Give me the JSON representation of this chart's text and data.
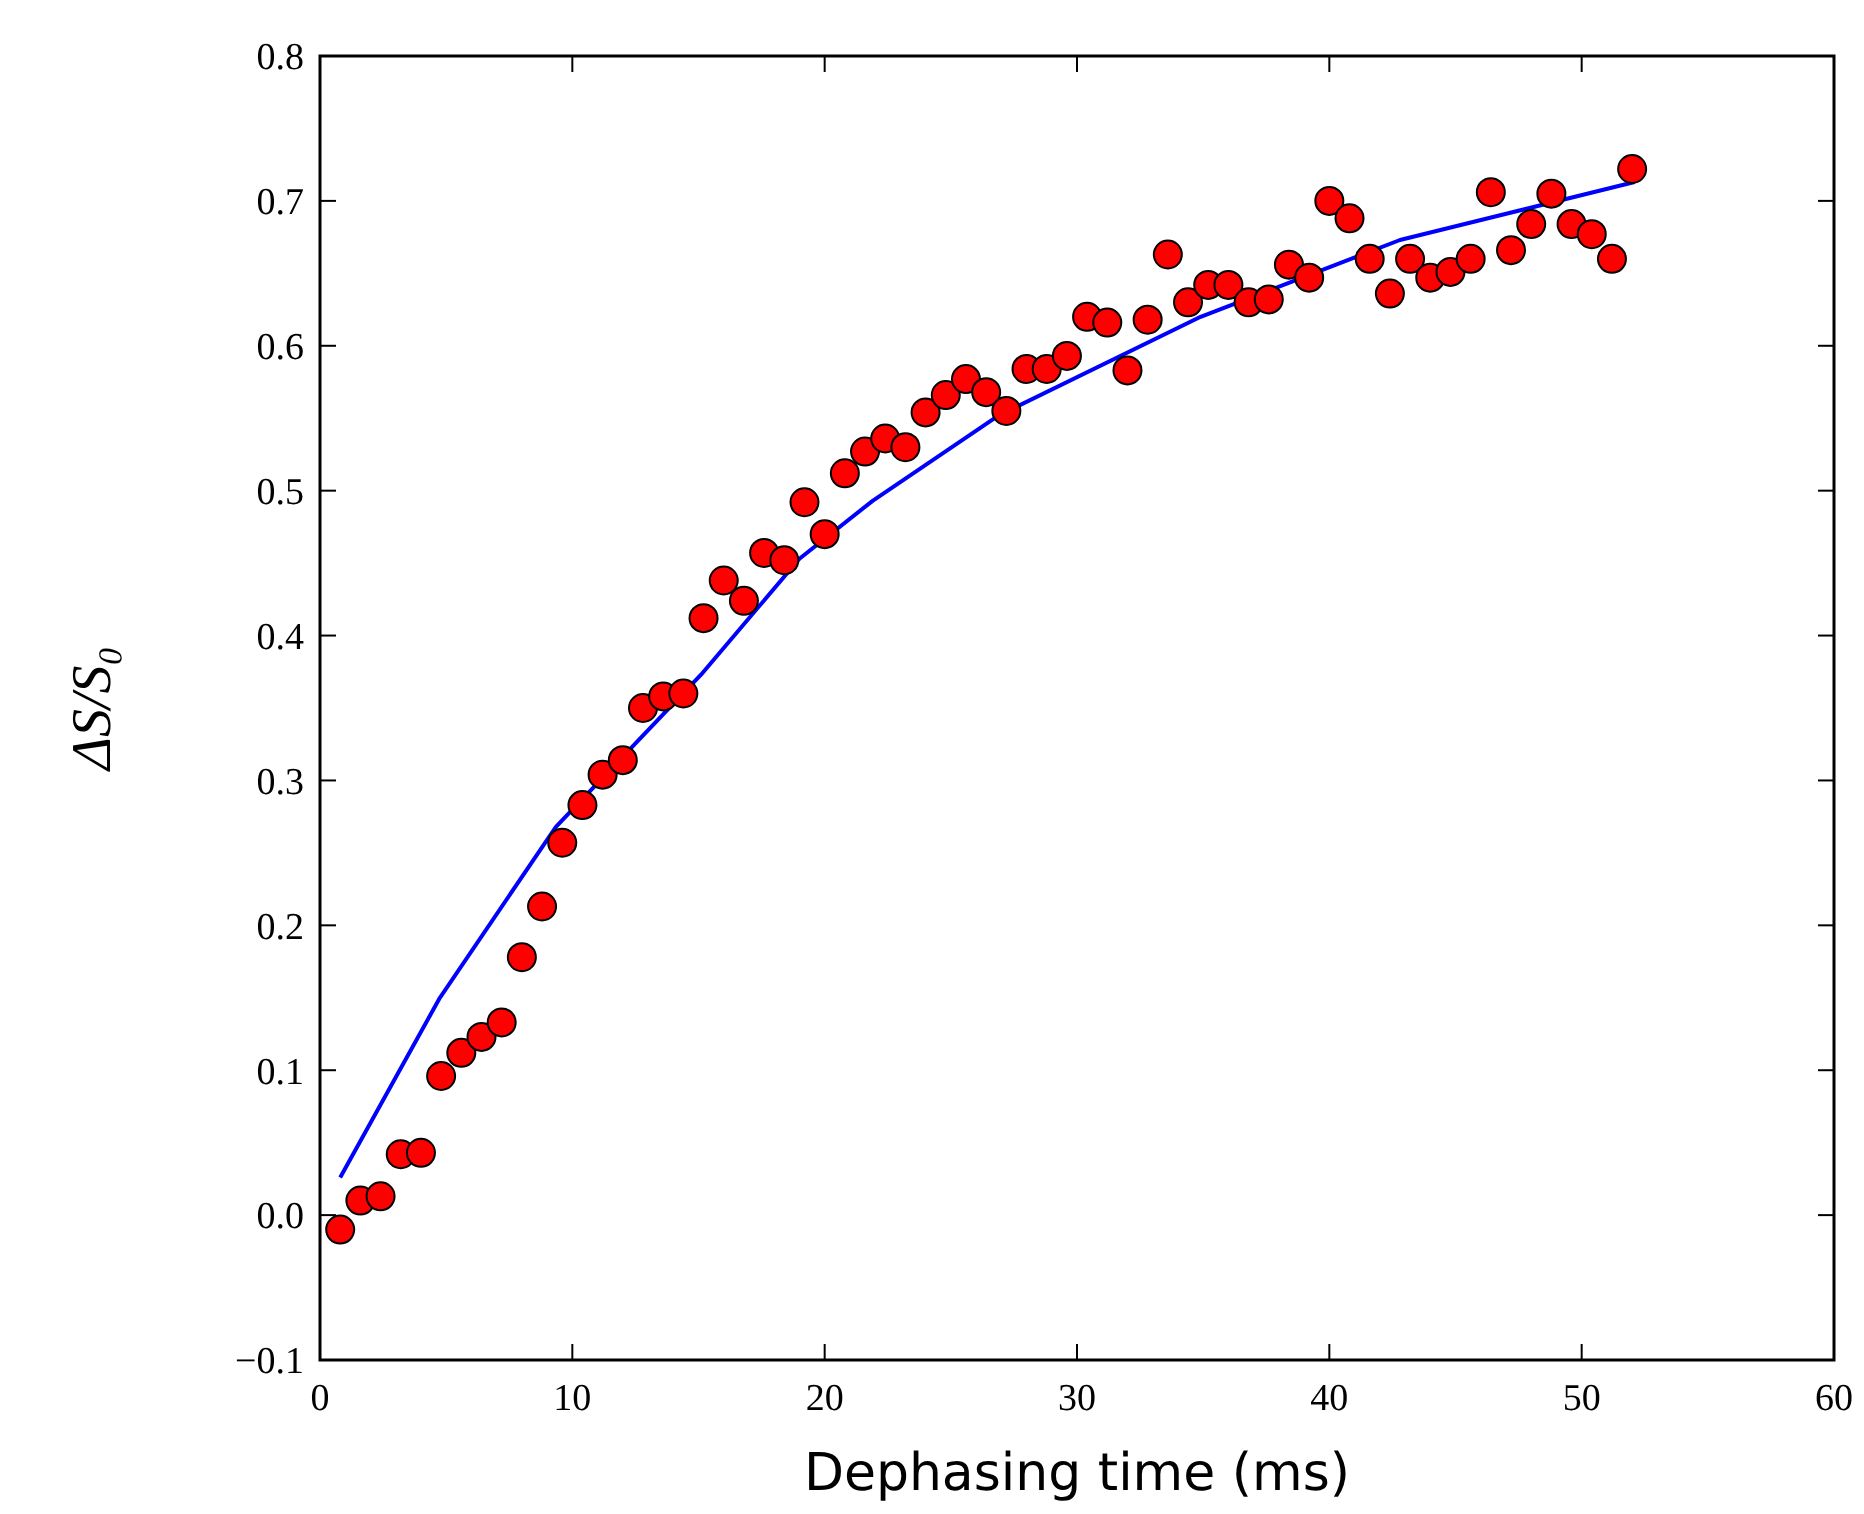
{
  "chart_data": {
    "type": "scatter",
    "xlabel": "Dephasing time (ms)",
    "ylabel": "ΔS/S₀",
    "xlim": [
      0,
      60
    ],
    "xticks": [
      0,
      10,
      20,
      30,
      40,
      50,
      60
    ],
    "ylim": [
      -0.1,
      0.8
    ],
    "yticks": [
      {
        "value": -0.1,
        "label": "−0.1"
      },
      {
        "value": 0,
        "label": "0.0"
      },
      {
        "value": 0.1,
        "label": "0.1"
      },
      {
        "value": 0.2,
        "label": "0.2"
      },
      {
        "value": 0.3,
        "label": "0.3"
      },
      {
        "value": 0.4,
        "label": "0.4"
      },
      {
        "value": 0.5,
        "label": "0.5"
      },
      {
        "value": 0.6,
        "label": "0.6"
      },
      {
        "value": 0.7,
        "label": "0.7"
      },
      {
        "value": 0.8,
        "label": "0.8"
      }
    ],
    "grid": false,
    "series": [
      {
        "type": "line",
        "color": "#0000ff",
        "line_style": "solid",
        "x": [
          0.8,
          4.75,
          9.35,
          15.1,
          19,
          21.9,
          26.9,
          34.9,
          42.8,
          52.1
        ],
        "values": [
          0.026,
          0.15,
          0.268,
          0.373,
          0.453,
          0.493,
          0.552,
          0.62,
          0.673,
          0.713
        ]
      },
      {
        "color": "#ff0000",
        "marker": "circle",
        "x": [
          0.8,
          1.6,
          2.4,
          3.2,
          4,
          4.8,
          5.6,
          6.4,
          7.2,
          8,
          8.8,
          9.6,
          10.4,
          11.2,
          12,
          12.8,
          13.6,
          14.4,
          15.2,
          16,
          16.8,
          17.6,
          18.4,
          19.2,
          20,
          20.8,
          21.6,
          22.4,
          23.2,
          24,
          24.8,
          25.6,
          26.4,
          27.2,
          28,
          28.8,
          29.6,
          30.4,
          31.2,
          32,
          32.8,
          33.6,
          34.4,
          35.2,
          36,
          36.8,
          37.6,
          38.4,
          39.2,
          40,
          40.8,
          41.6,
          42.4,
          43.2,
          44,
          44.8,
          45.6,
          46.4,
          47.2,
          48,
          48.8,
          49.6,
          50.4,
          51.2,
          52
        ],
        "values": [
          -0.01,
          0.01,
          0.013,
          0.042,
          0.043,
          0.096,
          0.112,
          0.123,
          0.133,
          0.178,
          0.213,
          0.257,
          0.283,
          0.304,
          0.314,
          0.35,
          0.358,
          0.36,
          0.412,
          0.438,
          0.424,
          0.457,
          0.452,
          0.492,
          0.47,
          0.512,
          0.527,
          0.536,
          0.53,
          0.554,
          0.566,
          0.577,
          0.568,
          0.555,
          0.584,
          0.584,
          0.593,
          0.62,
          0.616,
          0.583,
          0.618,
          0.663,
          0.63,
          0.642,
          0.642,
          0.63,
          0.632,
          0.656,
          0.647,
          0.7,
          0.688,
          0.66,
          0.636,
          0.66,
          0.647,
          0.651,
          0.66,
          0.706,
          0.666,
          0.684,
          0.705,
          0.684,
          0.677,
          0.66,
          0.722
        ]
      }
    ]
  }
}
